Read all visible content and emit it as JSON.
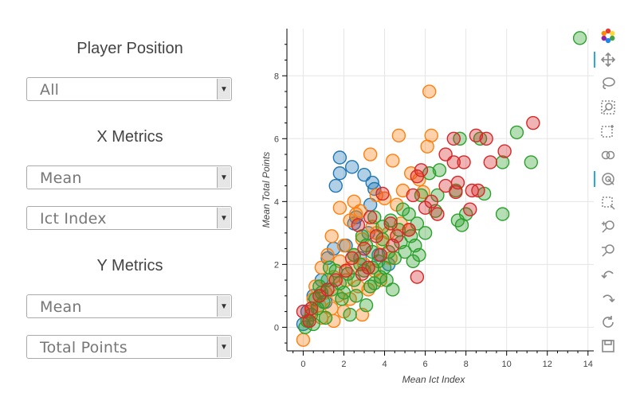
{
  "controls": {
    "position_heading": "Player Position",
    "position_value": "All",
    "x_heading": "X Metrics",
    "x_stat_value": "Mean",
    "x_metric_value": "Ict Index",
    "y_heading": "Y Metrics",
    "y_stat_value": "Mean",
    "y_metric_value": "Total Points"
  },
  "toolbar": {
    "tools": [
      "bokeh-logo-icon",
      "pan-icon",
      "lasso-select-icon",
      "box-zoom-icon",
      "box-select-icon",
      "wheel-zoom-icon",
      "tap-icon",
      "crosshair-icon",
      "zoom-in-icon",
      "zoom-out-icon",
      "undo-icon",
      "redo-icon",
      "reset-icon",
      "save-icon"
    ],
    "active": [
      "pan-icon",
      "tap-icon"
    ]
  },
  "chart_data": {
    "type": "scatter",
    "xlabel": "Mean Ict Index",
    "ylabel": "Mean Total Points",
    "xlim": [
      -0.8,
      14.4
    ],
    "ylim": [
      -0.75,
      9.5
    ],
    "xticks": [
      0,
      2,
      4,
      6,
      8,
      10,
      12,
      14
    ],
    "yticks": [
      0,
      2,
      4,
      6,
      8
    ],
    "grid": true,
    "series": [
      {
        "color": "#1f77b4",
        "points": [
          [
            1.8,
            5.4
          ],
          [
            2.4,
            5.1
          ],
          [
            1.8,
            4.9
          ],
          [
            1.6,
            4.5
          ],
          [
            3,
            4.85
          ],
          [
            3.4,
            4.6
          ],
          [
            3.5,
            4.4
          ],
          [
            3.3,
            3.9
          ],
          [
            2.6,
            3.5
          ],
          [
            2.5,
            3.3
          ],
          [
            3.2,
            3.0
          ],
          [
            2.1,
            2.6
          ],
          [
            1.5,
            2.5
          ],
          [
            1.2,
            2.2
          ],
          [
            2.8,
            2.2
          ],
          [
            3.7,
            2.3
          ],
          [
            4.2,
            2.0
          ],
          [
            0.9,
            1.5
          ],
          [
            0.5,
            1.0
          ],
          [
            0.2,
            0.5
          ],
          [
            0.0,
            0.1
          ],
          [
            1.1,
            0.8
          ]
        ]
      },
      {
        "color": "#ff7f0e",
        "points": [
          [
            6.2,
            7.5
          ],
          [
            6.3,
            6.1
          ],
          [
            4.7,
            6.1
          ],
          [
            6.1,
            5.75
          ],
          [
            3.3,
            5.5
          ],
          [
            4.4,
            5.3
          ],
          [
            5.3,
            4.9
          ],
          [
            5.7,
            4.7
          ],
          [
            5.9,
            4.3
          ],
          [
            2.5,
            4.0
          ],
          [
            2.8,
            3.7
          ],
          [
            4.0,
            4.1
          ],
          [
            4.6,
            3.9
          ],
          [
            3.6,
            4.2
          ],
          [
            4.9,
            4.35
          ],
          [
            1.8,
            3.8
          ],
          [
            2.3,
            3.4
          ],
          [
            2.6,
            3.6
          ],
          [
            3.4,
            3.2
          ],
          [
            3.6,
            3.0
          ],
          [
            4.2,
            3.0
          ],
          [
            4.8,
            3.3
          ],
          [
            5.2,
            3.1
          ],
          [
            1.4,
            2.9
          ],
          [
            2.0,
            2.6
          ],
          [
            2.9,
            2.8
          ],
          [
            3.9,
            2.7
          ],
          [
            1.2,
            2.3
          ],
          [
            1.8,
            2.1
          ],
          [
            2.4,
            1.9
          ],
          [
            3.0,
            2.0
          ],
          [
            3.5,
            1.8
          ],
          [
            0.9,
            1.9
          ],
          [
            1.5,
            1.6
          ],
          [
            2.1,
            1.5
          ],
          [
            2.7,
            1.3
          ],
          [
            3.2,
            1.2
          ],
          [
            0.6,
            1.3
          ],
          [
            1.1,
            1.1
          ],
          [
            1.7,
            1.0
          ],
          [
            2.3,
            0.9
          ],
          [
            0.8,
            0.7
          ],
          [
            1.4,
            0.6
          ],
          [
            2.0,
            0.5
          ],
          [
            0.4,
            0.5
          ],
          [
            0.9,
            0.3
          ],
          [
            1.5,
            0.2
          ],
          [
            0.2,
            0.2
          ],
          [
            0.0,
            -0.4
          ],
          [
            2.9,
            0.4
          ],
          [
            0.5,
            0.9
          ],
          [
            4.3,
            2.2
          ],
          [
            3.8,
            1.5
          ],
          [
            2.5,
            2.3
          ]
        ]
      },
      {
        "color": "#2ca02c",
        "points": [
          [
            13.6,
            9.2
          ],
          [
            10.5,
            6.2
          ],
          [
            11.2,
            5.25
          ],
          [
            7.7,
            6.0
          ],
          [
            8.7,
            6.0
          ],
          [
            9.8,
            5.25
          ],
          [
            6.7,
            5.0
          ],
          [
            6.2,
            4.9
          ],
          [
            5.8,
            4.2
          ],
          [
            6.6,
            4.2
          ],
          [
            7.5,
            4.35
          ],
          [
            8.9,
            4.25
          ],
          [
            9.8,
            3.6
          ],
          [
            7.6,
            3.4
          ],
          [
            7.8,
            3.25
          ],
          [
            8.0,
            3.6
          ],
          [
            6.5,
            3.7
          ],
          [
            5.2,
            3.6
          ],
          [
            4.9,
            3.75
          ],
          [
            4.3,
            3.4
          ],
          [
            3.5,
            3.5
          ],
          [
            4.7,
            3.1
          ],
          [
            5.3,
            2.9
          ],
          [
            5.6,
            3.3
          ],
          [
            3.9,
            2.8
          ],
          [
            4.2,
            2.4
          ],
          [
            4.5,
            2.2
          ],
          [
            5.0,
            2.4
          ],
          [
            5.4,
            2.1
          ],
          [
            5.7,
            2.3
          ],
          [
            3.1,
            2.6
          ],
          [
            3.4,
            2.4
          ],
          [
            3.7,
            2.1
          ],
          [
            2.5,
            2.3
          ],
          [
            2.8,
            2.0
          ],
          [
            3.0,
            1.8
          ],
          [
            3.4,
            1.9
          ],
          [
            3.8,
            1.6
          ],
          [
            4.0,
            1.9
          ],
          [
            4.1,
            1.5
          ],
          [
            3.5,
            1.4
          ],
          [
            2.2,
            1.7
          ],
          [
            2.5,
            1.5
          ],
          [
            1.6,
            1.8
          ],
          [
            1.8,
            1.4
          ],
          [
            1.2,
            1.5
          ],
          [
            1.4,
            1.2
          ],
          [
            0.9,
            1.1
          ],
          [
            1.0,
            0.8
          ],
          [
            0.7,
            0.6
          ],
          [
            0.4,
            0.4
          ],
          [
            0.2,
            0.2
          ],
          [
            0.1,
            0.0
          ],
          [
            1.1,
            0.3
          ],
          [
            0.5,
            0.1
          ],
          [
            2.0,
            1.1
          ],
          [
            2.6,
            1.0
          ],
          [
            3.3,
            1.3
          ],
          [
            4.4,
            1.2
          ],
          [
            5.5,
            2.6
          ],
          [
            6.0,
            3.0
          ],
          [
            4.8,
            2.7
          ],
          [
            2.9,
            2.9
          ],
          [
            3.9,
            3.2
          ],
          [
            1.3,
            1.9
          ],
          [
            0.8,
            1.3
          ],
          [
            0.6,
            0.9
          ],
          [
            1.9,
            0.9
          ],
          [
            2.3,
            0.4
          ],
          [
            3.1,
            0.7
          ]
        ]
      },
      {
        "color": "#d62728",
        "points": [
          [
            11.3,
            6.5
          ],
          [
            7.4,
            6.0
          ],
          [
            8.5,
            6.1
          ],
          [
            9.0,
            6.0
          ],
          [
            9.9,
            5.6
          ],
          [
            7.0,
            5.5
          ],
          [
            7.4,
            5.25
          ],
          [
            7.9,
            5.25
          ],
          [
            9.2,
            5.25
          ],
          [
            5.8,
            5.0
          ],
          [
            5.6,
            4.8
          ],
          [
            7.6,
            4.6
          ],
          [
            7.5,
            4.3
          ],
          [
            8.3,
            4.35
          ],
          [
            8.6,
            4.35
          ],
          [
            7.0,
            4.5
          ],
          [
            8.2,
            3.75
          ],
          [
            6.3,
            4.0
          ],
          [
            6.6,
            3.6
          ],
          [
            5.4,
            4.2
          ],
          [
            3.9,
            4.25
          ],
          [
            3.3,
            3.5
          ],
          [
            4.3,
            3.3
          ],
          [
            4.6,
            2.9
          ],
          [
            5.2,
            3.1
          ],
          [
            3.6,
            2.9
          ],
          [
            2.7,
            3.25
          ],
          [
            3.8,
            2.3
          ],
          [
            2.4,
            2.2
          ],
          [
            2.9,
            1.7
          ],
          [
            3.2,
            1.9
          ],
          [
            2.1,
            1.8
          ],
          [
            1.6,
            1.5
          ],
          [
            1.2,
            1.2
          ],
          [
            0.8,
            1.0
          ],
          [
            0.4,
            0.6
          ],
          [
            0.0,
            0.5
          ],
          [
            0.3,
            0.2
          ],
          [
            5.6,
            1.6
          ],
          [
            4.4,
            2.6
          ],
          [
            6.0,
            3.8
          ],
          [
            3.0,
            2.5
          ]
        ]
      }
    ]
  }
}
